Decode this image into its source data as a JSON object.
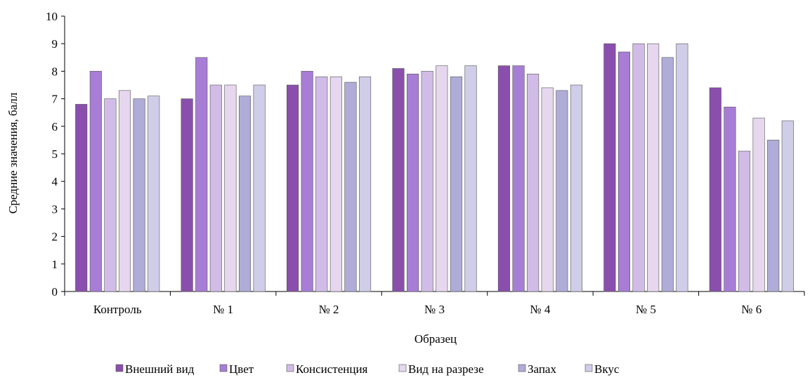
{
  "chart_data": {
    "type": "bar",
    "title": "",
    "xlabel": "Образец",
    "ylabel": "Средние значения, балл",
    "ylim": [
      0,
      10
    ],
    "yticks": [
      0,
      1,
      2,
      3,
      4,
      5,
      6,
      7,
      8,
      9,
      10
    ],
    "grid": false,
    "legend_position": "bottom",
    "categories": [
      "Контроль",
      "№ 1",
      "№ 2",
      "№ 3",
      "№ 4",
      "№ 5",
      "№ 6"
    ],
    "series": [
      {
        "name": "Внешний вид",
        "color": "#8a4fad",
        "values": [
          6.8,
          7.0,
          7.5,
          8.1,
          8.2,
          9.0,
          7.4
        ]
      },
      {
        "name": "Цвет",
        "color": "#a87dd6",
        "values": [
          8.0,
          8.5,
          8.0,
          7.9,
          8.2,
          8.7,
          6.7
        ]
      },
      {
        "name": "Консистенция",
        "color": "#d1bce8",
        "values": [
          7.0,
          7.5,
          7.8,
          8.0,
          7.9,
          9.0,
          5.1
        ]
      },
      {
        "name": "Вид на разрезе",
        "color": "#e6d6ee",
        "values": [
          7.3,
          7.5,
          7.8,
          8.2,
          7.4,
          9.0,
          6.3
        ]
      },
      {
        "name": "Запах",
        "color": "#b0acd8",
        "values": [
          7.0,
          7.1,
          7.6,
          7.8,
          7.3,
          8.5,
          5.5
        ]
      },
      {
        "name": "Вкус",
        "color": "#d0cde8",
        "values": [
          7.1,
          7.5,
          7.8,
          8.2,
          7.5,
          9.0,
          6.2
        ]
      }
    ]
  }
}
